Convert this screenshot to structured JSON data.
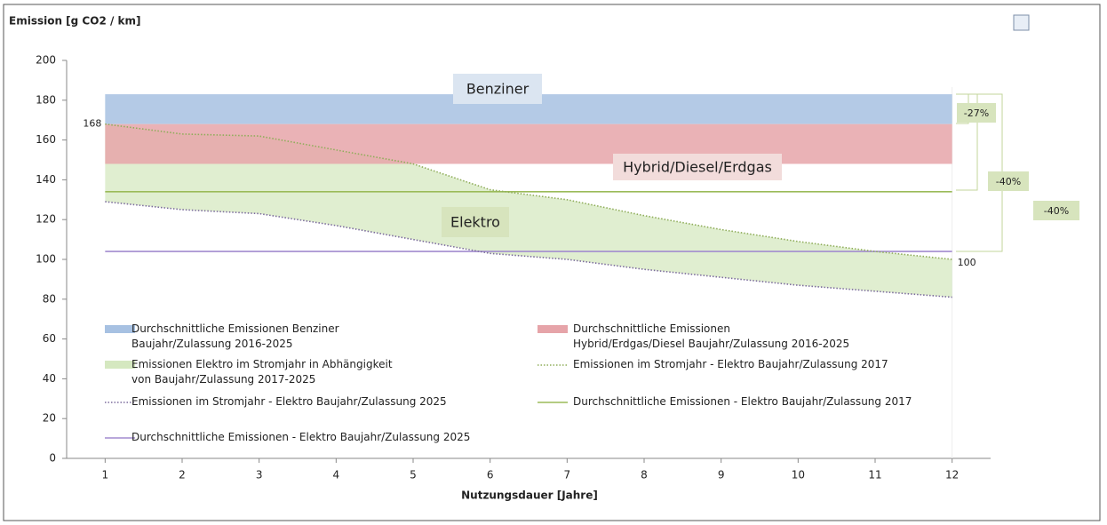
{
  "chart_data": {
    "type": "line",
    "title": "Emission [g CO2 / km]",
    "xlabel": "Nutzungsdauer [Jahre]",
    "x": [
      1,
      2,
      3,
      4,
      5,
      6,
      7,
      8,
      9,
      10,
      11,
      12
    ],
    "xlim": [
      0.5,
      12.5
    ],
    "xticks": [
      1,
      2,
      3,
      4,
      5,
      6,
      7,
      8,
      9,
      10,
      11,
      12
    ],
    "ylim": [
      0,
      200
    ],
    "yticks": [
      0,
      20,
      40,
      60,
      80,
      100,
      120,
      140,
      160,
      180,
      200
    ],
    "series": [
      {
        "name": "Durchschnittliche Emissionen Benziner\nBaujahr/Zulassung 2016-2025",
        "kind": "band",
        "color": "#a7c1e2",
        "range": [
          168,
          183
        ],
        "label": "Benziner"
      },
      {
        "name": "Durchschnittliche Emissionen\nHybrid/Erdgas/Diesel Baujahr/Zulassung 2016-2025",
        "kind": "band",
        "color": "#e6a4a9",
        "range": [
          148,
          168
        ],
        "label": "Hybrid/Diesel/Erdgas"
      },
      {
        "name": "Emissionen Elektro im Stromjahr in Abhängigkeit\nvon Baujahr/Zulassung 2017-2025",
        "kind": "area_between",
        "color": "#d5e8c0",
        "label": "Elektro"
      },
      {
        "name": "Emissionen im Stromjahr - Elektro Baujahr/Zulassung 2017",
        "kind": "dotted",
        "color": "#8fad5a",
        "values": [
          168,
          163,
          162,
          155,
          148,
          135,
          130,
          122,
          115,
          109,
          104,
          100
        ],
        "value_labels": [
          "168",
          null,
          null,
          null,
          null,
          null,
          null,
          null,
          null,
          null,
          null,
          "100"
        ]
      },
      {
        "name": "Emissionen im Stromjahr - Elektro Baujahr/Zulassung 2025",
        "kind": "dotted",
        "color": "#7b6b9c",
        "values": [
          129,
          125,
          123,
          117,
          110,
          103,
          100,
          95,
          91,
          87,
          84,
          81
        ]
      },
      {
        "name": "Durchschnittliche Emissionen - Elektro Baujahr/Zulassung 2017",
        "kind": "level",
        "color": "#9bbb59",
        "level": 134
      },
      {
        "name": "Durchschnittliche Emissionen - Elektro Baujahr/Zulassung 2025",
        "kind": "level",
        "color": "#a28ccf",
        "level": 104
      }
    ],
    "annotations": [
      "-27%",
      "-40%",
      "-40%"
    ]
  }
}
